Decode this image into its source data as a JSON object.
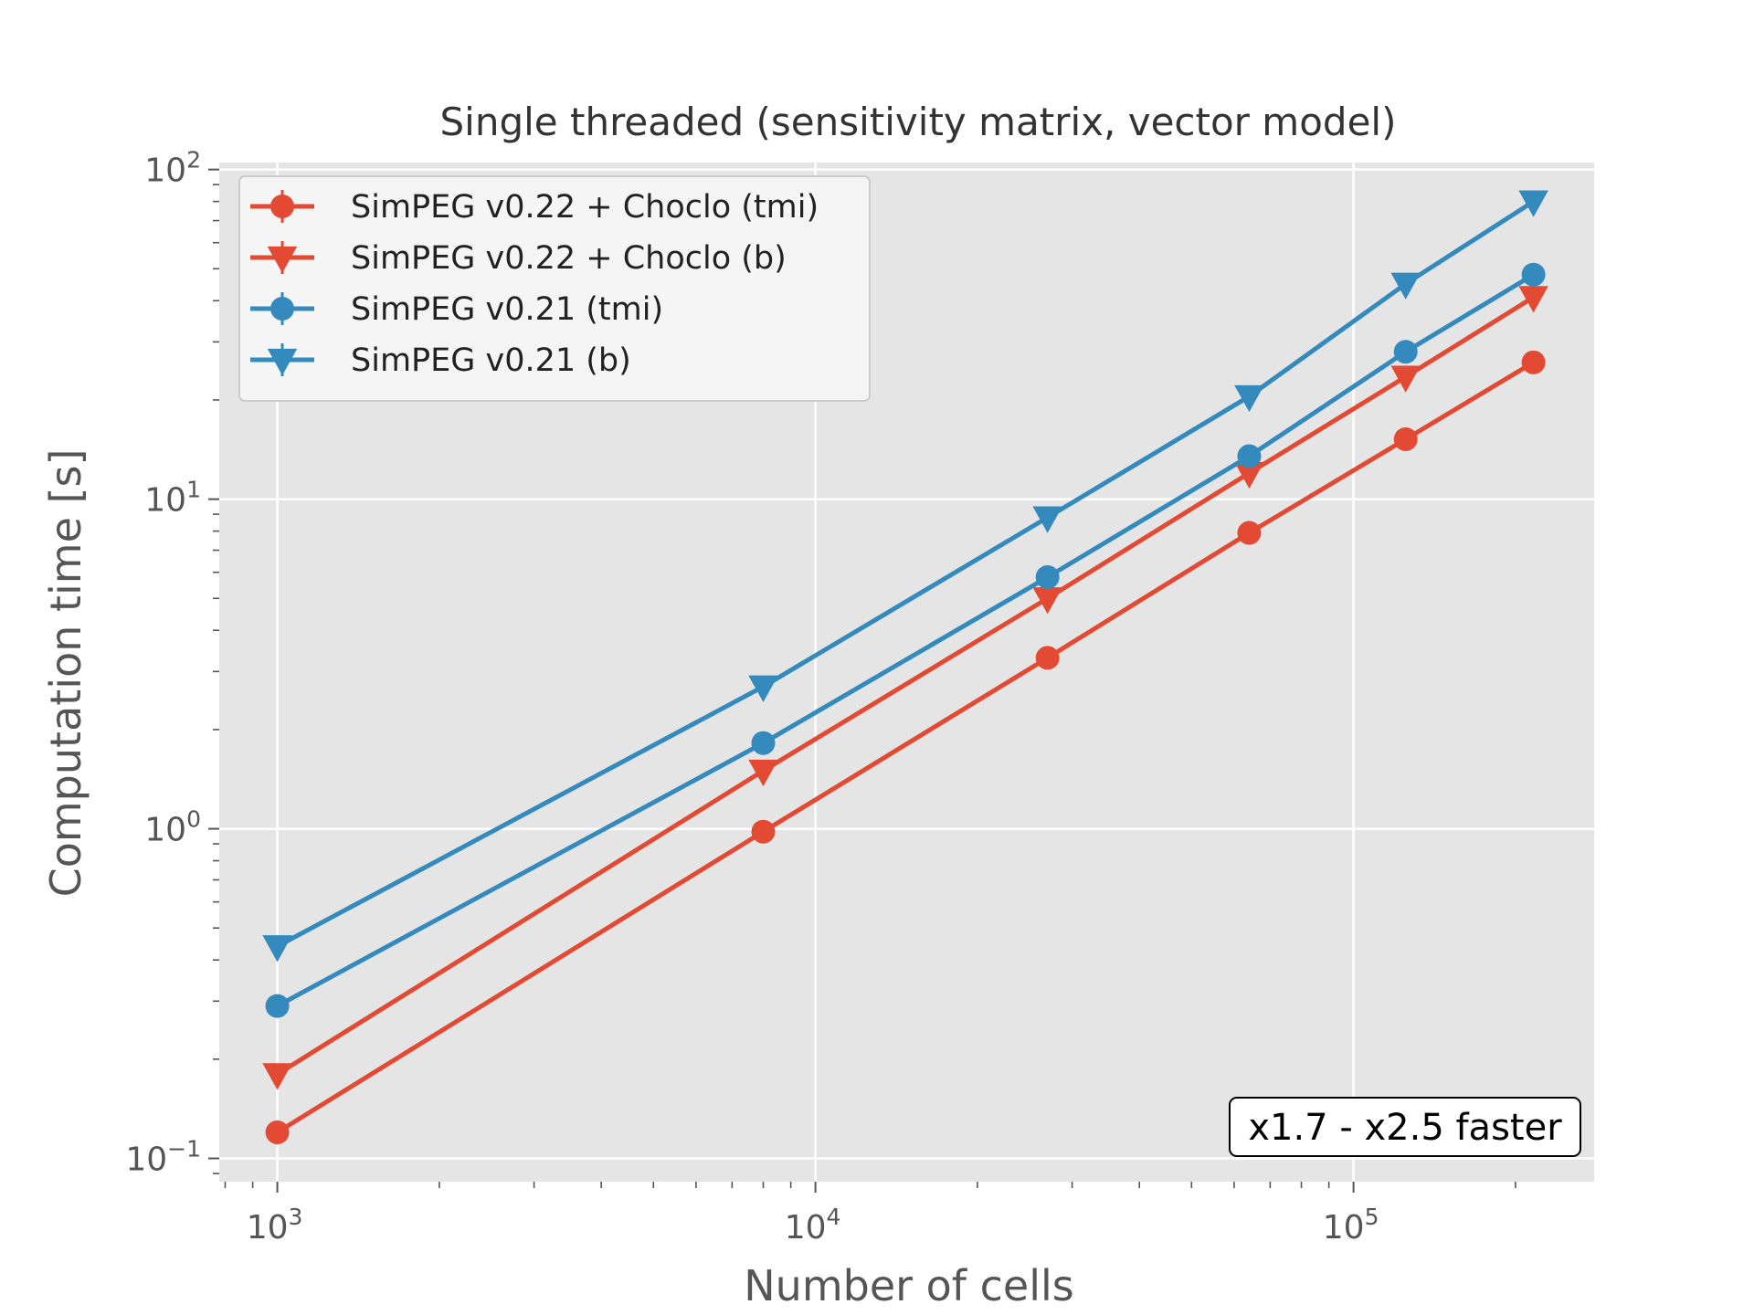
{
  "chart_data": {
    "type": "line",
    "title": "Single threaded (sensitivity matrix, vector model)",
    "xlabel": "Number of cells",
    "ylabel": "Computation time [s]",
    "xscale": "log",
    "yscale": "log",
    "xlim": [
      780,
      280000
    ],
    "ylim": [
      0.085,
      105
    ],
    "grid": true,
    "legend_position": "top-left",
    "annotation": "x1.7 - x2.5 faster",
    "annotation_position": "bottom-right",
    "x_ticks": [
      {
        "value": 1000,
        "base": "10",
        "exp": "3"
      },
      {
        "value": 10000,
        "base": "10",
        "exp": "4"
      },
      {
        "value": 100000,
        "base": "10",
        "exp": "5"
      }
    ],
    "y_ticks": [
      {
        "value": 0.1,
        "base": "10",
        "exp": "−1"
      },
      {
        "value": 1,
        "base": "10",
        "exp": "0"
      },
      {
        "value": 10,
        "base": "10",
        "exp": "1"
      },
      {
        "value": 100,
        "base": "10",
        "exp": "2"
      }
    ],
    "x": [
      1000,
      8000,
      27000,
      64000,
      125000,
      216000
    ],
    "series": [
      {
        "name": "SimPEG v0.22 + Choclo (tmi)",
        "color": "#E24A33",
        "marker": "circle",
        "values": [
          0.12,
          0.98,
          3.3,
          7.9,
          15.2,
          26
        ]
      },
      {
        "name": "SimPEG v0.22 + Choclo (b)",
        "color": "#E24A33",
        "marker": "triangle-down",
        "values": [
          0.18,
          1.5,
          5.0,
          12.0,
          23.5,
          41
        ]
      },
      {
        "name": "SimPEG v0.21 (tmi)",
        "color": "#348ABD",
        "marker": "circle",
        "values": [
          0.29,
          1.82,
          5.8,
          13.5,
          28,
          48
        ]
      },
      {
        "name": "SimPEG v0.21 (b)",
        "color": "#348ABD",
        "marker": "triangle-down",
        "values": [
          0.44,
          2.7,
          8.8,
          20.5,
          45,
          80
        ]
      }
    ],
    "colors": {
      "plot_background": "#E5E5E5",
      "grid": "#FFFFFF",
      "legend_background": "#F5F5F5"
    }
  }
}
